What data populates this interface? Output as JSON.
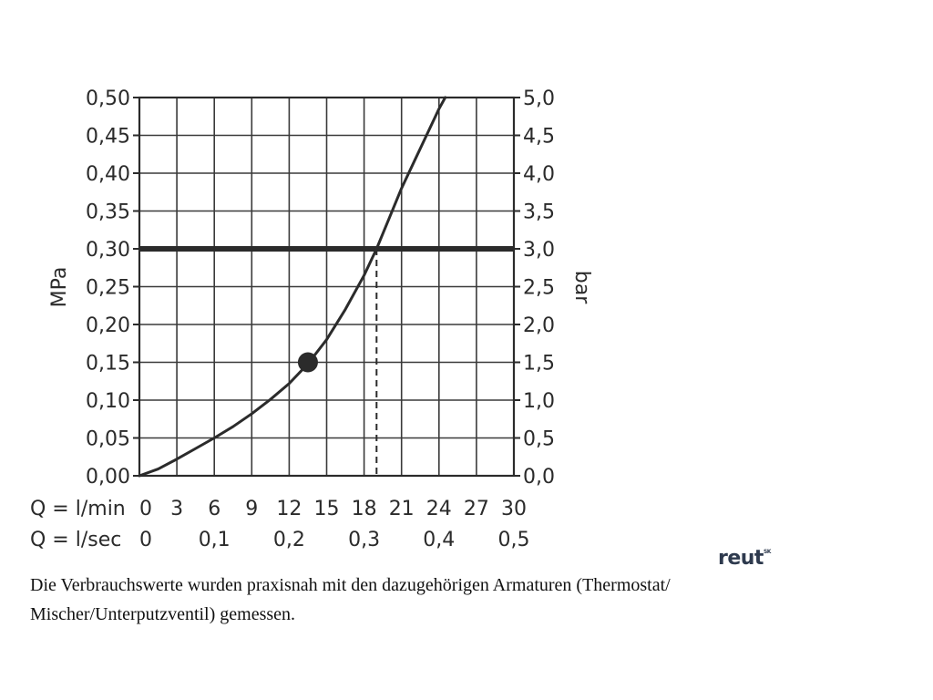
{
  "chart_data": {
    "type": "line",
    "y_left": {
      "label": "MPa",
      "ticks": [
        "0,00",
        "0,05",
        "0,10",
        "0,15",
        "0,20",
        "0,25",
        "0,30",
        "0,35",
        "0,40",
        "0,45",
        "0,50"
      ],
      "range": [
        0,
        0.5
      ]
    },
    "y_right": {
      "label": "bar",
      "ticks": [
        "0,0",
        "0,5",
        "1,0",
        "1,5",
        "2,0",
        "2,5",
        "3,0",
        "3,5",
        "4,0",
        "4,5",
        "5,0"
      ],
      "range": [
        0,
        5
      ]
    },
    "x_lmin": {
      "label": "Q = l/min",
      "ticks": [
        "0",
        "3",
        "6",
        "9",
        "12",
        "15",
        "18",
        "21",
        "24",
        "27",
        "30"
      ],
      "range": [
        0,
        30
      ]
    },
    "x_lsec": {
      "label": "Q = l/sec",
      "ticks": [
        "0",
        "0,1",
        "0,2",
        "0,3",
        "0,4",
        "0,5"
      ]
    },
    "series": [
      {
        "x": [
          0,
          1.5,
          3,
          4.5,
          6,
          7.5,
          9,
          10.5,
          12,
          13.5,
          15,
          16.5,
          18,
          19,
          20,
          21,
          22,
          23,
          24,
          24.5
        ],
        "y": [
          0,
          0.009,
          0.022,
          0.036,
          0.05,
          0.065,
          0.082,
          0.101,
          0.122,
          0.148,
          0.18,
          0.22,
          0.265,
          0.3,
          0.34,
          0.38,
          0.415,
          0.45,
          0.485,
          0.5
        ]
      }
    ],
    "reference_line": {
      "y": 0.3
    },
    "drop_line": {
      "x": 19,
      "y": 0.3
    },
    "marker": {
      "x": 13.5,
      "y": 0.15
    },
    "grid": true
  },
  "logo": {
    "text": "reut",
    "superscript": "SK"
  },
  "caption": {
    "line1": "Die Verbrauchswerte wurden praxisnah mit den dazugehörigen Armaturen (Thermostat/",
    "line2": "Mischer/Unterputzventil) gemessen."
  }
}
